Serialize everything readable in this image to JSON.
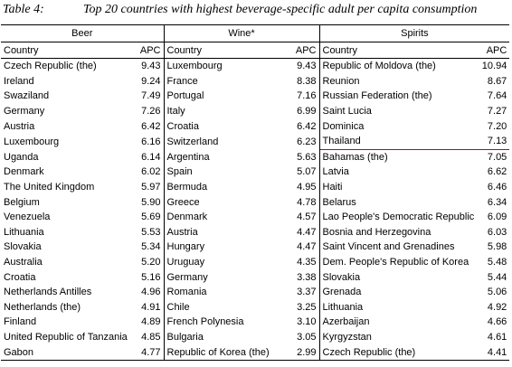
{
  "caption": {
    "label": "Table 4:",
    "title": "Top 20 countries with highest beverage-specific adult per capita consumption"
  },
  "groups": {
    "beer": "Beer",
    "wine": "Wine*",
    "spirits": "Spirits"
  },
  "col_headers": {
    "country": "Country",
    "apc": "APC"
  },
  "highlight_color": "#cc0000",
  "rows": [
    {
      "beer_country": "Czech Republic (the)",
      "beer_apc": "9.43",
      "wine_country": "Luxembourg",
      "wine_apc": "9.43",
      "spirits_country": "Republic of Moldova (the)",
      "spirits_apc": "10.94"
    },
    {
      "beer_country": "Ireland",
      "beer_apc": "9.24",
      "wine_country": "France",
      "wine_apc": "8.38",
      "spirits_country": "Reunion",
      "spirits_apc": "8.67"
    },
    {
      "beer_country": "Swaziland",
      "beer_apc": "7.49",
      "wine_country": "Portugal",
      "wine_apc": "7.16",
      "spirits_country": "Russian Federation (the)",
      "spirits_apc": "7.64"
    },
    {
      "beer_country": "Germany",
      "beer_apc": "7.26",
      "wine_country": "Italy",
      "wine_apc": "6.99",
      "spirits_country": "Saint Lucia",
      "spirits_apc": "7.27"
    },
    {
      "beer_country": "Austria",
      "beer_apc": "6.42",
      "wine_country": "Croatia",
      "wine_apc": "6.42",
      "spirits_country": "Dominica",
      "spirits_apc": "7.20"
    },
    {
      "beer_country": "Luxembourg",
      "beer_apc": "6.16",
      "wine_country": "Switzerland",
      "wine_apc": "6.23",
      "spirits_country": "Thailand",
      "spirits_apc": "7.13"
    },
    {
      "beer_country": "Uganda",
      "beer_apc": "6.14",
      "wine_country": "Argentina",
      "wine_apc": "5.63",
      "spirits_country": "Bahamas (the)",
      "spirits_apc": "7.05"
    },
    {
      "beer_country": "Denmark",
      "beer_apc": "6.02",
      "wine_country": "Spain",
      "wine_apc": "5.07",
      "spirits_country": "Latvia",
      "spirits_apc": "6.62"
    },
    {
      "beer_country": "The United Kingdom",
      "beer_apc": "5.97",
      "wine_country": "Bermuda",
      "wine_apc": "4.95",
      "spirits_country": "Haiti",
      "spirits_apc": "6.46"
    },
    {
      "beer_country": "Belgium",
      "beer_apc": "5.90",
      "wine_country": "Greece",
      "wine_apc": "4.78",
      "spirits_country": "Belarus",
      "spirits_apc": "6.34"
    },
    {
      "beer_country": "Venezuela",
      "beer_apc": "5.69",
      "wine_country": "Denmark",
      "wine_apc": "4.57",
      "spirits_country": "Lao People's Democratic Republic",
      "spirits_apc": "6.09"
    },
    {
      "beer_country": "Lithuania",
      "beer_apc": "5.53",
      "wine_country": "Austria",
      "wine_apc": "4.47",
      "spirits_country": "Bosnia and Herzegovina",
      "spirits_apc": "6.03"
    },
    {
      "beer_country": "Slovakia",
      "beer_apc": "5.34",
      "wine_country": "Hungary",
      "wine_apc": "4.47",
      "spirits_country": "Saint Vincent and Grenadines",
      "spirits_apc": "5.98"
    },
    {
      "beer_country": "Australia",
      "beer_apc": "5.20",
      "wine_country": "Uruguay",
      "wine_apc": "4.35",
      "spirits_country": "Dem. People's Republic of Korea",
      "spirits_apc": "5.48"
    },
    {
      "beer_country": "Croatia",
      "beer_apc": "5.16",
      "wine_country": "Germany",
      "wine_apc": "3.38",
      "spirits_country": "Slovakia",
      "spirits_apc": "5.44"
    },
    {
      "beer_country": "Netherlands Antilles",
      "beer_apc": "4.96",
      "wine_country": "Romania",
      "wine_apc": "3.37",
      "spirits_country": "Grenada",
      "spirits_apc": "5.06"
    },
    {
      "beer_country": "Netherlands (the)",
      "beer_apc": "4.91",
      "wine_country": "Chile",
      "wine_apc": "3.25",
      "spirits_country": "Lithuania",
      "spirits_apc": "4.92"
    },
    {
      "beer_country": "Finland",
      "beer_apc": "4.89",
      "wine_country": "French Polynesia",
      "wine_apc": "3.10",
      "spirits_country": "Azerbaijan",
      "spirits_apc": "4.66"
    },
    {
      "beer_country": "United Republic of Tanzania",
      "beer_apc": "4.85",
      "wine_country": "Bulgaria",
      "wine_apc": "3.05",
      "spirits_country": "Kyrgyzstan",
      "spirits_apc": "4.61"
    },
    {
      "beer_country": "Gabon",
      "beer_apc": "4.77",
      "wine_country": "Republic of Korea (the)",
      "wine_apc": "2.99",
      "spirits_country": "Czech Republic (the)",
      "spirits_apc": "4.41"
    }
  ]
}
